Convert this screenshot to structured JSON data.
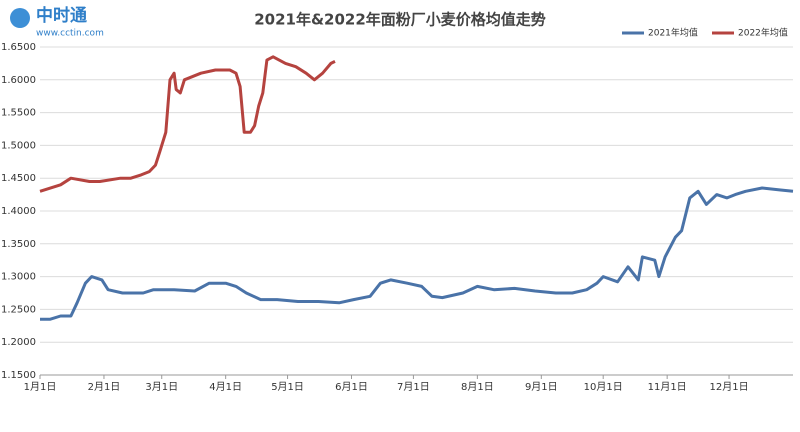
{
  "logo": {
    "name": "中时通",
    "url": "www.cctin.com"
  },
  "chart_data": {
    "type": "line",
    "title": "2021年&2022年面粉厂小麦价格均值走势",
    "xlim": [
      0,
      365
    ],
    "xticks": [
      {
        "value": 0,
        "label": "1月1日"
      },
      {
        "value": 31,
        "label": "2月1日"
      },
      {
        "value": 59,
        "label": "3月1日"
      },
      {
        "value": 90,
        "label": "4月1日"
      },
      {
        "value": 120,
        "label": "5月1日"
      },
      {
        "value": 151,
        "label": "6月1日"
      },
      {
        "value": 181,
        "label": "7月1日"
      },
      {
        "value": 212,
        "label": "8月1日"
      },
      {
        "value": 243,
        "label": "9月1日"
      },
      {
        "value": 273,
        "label": "10月1日"
      },
      {
        "value": 304,
        "label": "11月1日"
      },
      {
        "value": 334,
        "label": "12月1日"
      }
    ],
    "ylim": [
      1.15,
      1.65
    ],
    "yticks": [
      {
        "value": 1.15,
        "label": "1.1500"
      },
      {
        "value": 1.2,
        "label": "1.2000"
      },
      {
        "value": 1.25,
        "label": "1.2500"
      },
      {
        "value": 1.3,
        "label": "1.3000"
      },
      {
        "value": 1.35,
        "label": "1.3500"
      },
      {
        "value": 1.4,
        "label": "1.4000"
      },
      {
        "value": 1.45,
        "label": "1.4500"
      },
      {
        "value": 1.5,
        "label": "1.5000"
      },
      {
        "value": 1.55,
        "label": "1.5500"
      },
      {
        "value": 1.6,
        "label": "1.6000"
      },
      {
        "value": 1.65,
        "label": "1.6500"
      }
    ],
    "grid": true,
    "legend": "top-right",
    "series": [
      {
        "name": "2021年均值",
        "color": "#4a73a8",
        "x": [
          0,
          5,
          10,
          15,
          18,
          22,
          25,
          30,
          33,
          40,
          50,
          55,
          65,
          75,
          82,
          90,
          95,
          100,
          107,
          115,
          125,
          135,
          145,
          152,
          160,
          165,
          170,
          178,
          185,
          190,
          195,
          205,
          212,
          220,
          230,
          240,
          250,
          258,
          265,
          270,
          280,
          290,
          300,
          273,
          285,
          292,
          298,
          303,
          308,
          311,
          315,
          319,
          323,
          328,
          333,
          337,
          342,
          350,
          359,
          365
        ],
        "values": [
          1.235,
          1.235,
          1.24,
          1.24,
          1.26,
          1.29,
          1.3,
          1.295,
          1.28,
          1.275,
          1.275,
          1.28,
          1.28,
          1.278,
          1.29,
          1.29,
          1.285,
          1.275,
          1.265,
          1.265,
          1.262,
          1.262,
          1.26,
          1.265,
          1.27,
          1.29,
          1.295,
          1.29,
          1.285,
          1.27,
          1.268,
          1.275,
          1.285,
          1.28,
          1.282,
          1.278,
          1.275,
          1.275,
          1.28,
          1.29,
          1.292,
          1.295,
          1.3,
          1.3,
          1.315,
          1.33,
          1.325,
          1.33,
          1.36,
          1.37,
          1.42,
          1.43,
          1.41,
          1.425,
          1.42,
          1.425,
          1.43,
          1.435,
          1.432,
          1.43
        ]
      },
      {
        "name": "2022年均值",
        "color": "#b5433f",
        "x": [
          0,
          10,
          15,
          24,
          29,
          39,
          44,
          49,
          53,
          56,
          58,
          61,
          63,
          65,
          66,
          68,
          70,
          78,
          85,
          92,
          95,
          97,
          99,
          102,
          104,
          106,
          108,
          110,
          113,
          119,
          124,
          129,
          133,
          137,
          141,
          143
        ],
        "values": [
          1.43,
          1.44,
          1.45,
          1.445,
          1.445,
          1.45,
          1.45,
          1.455,
          1.46,
          1.47,
          1.49,
          1.52,
          1.6,
          1.61,
          1.585,
          1.58,
          1.6,
          1.61,
          1.615,
          1.615,
          1.61,
          1.59,
          1.52,
          1.52,
          1.53,
          1.56,
          1.58,
          1.63,
          1.635,
          1.625,
          1.62,
          1.61,
          1.6,
          1.61,
          1.625,
          1.628
        ]
      }
    ]
  }
}
